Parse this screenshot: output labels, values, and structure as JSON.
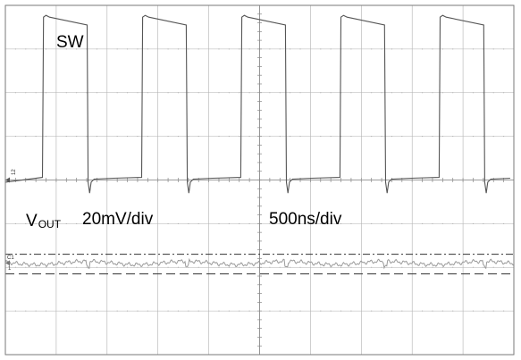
{
  "chart_data": {
    "type": "line",
    "grid": true,
    "labels": {
      "sw": "SW",
      "vout_main": "V",
      "vout_sub": "OUT",
      "vscale": "20mV/div",
      "tscale": "500ns/div",
      "ch2_marker": "12",
      "ch1_marker": "C1",
      "ch1_marker_2": "1"
    },
    "x_divisions": 10,
    "y_divisions": 8,
    "series": [
      {
        "trace": "sw",
        "period_div": 1.95,
        "first_rise_div": 0.75,
        "duty": 0.45,
        "high_level_div": 7.75,
        "low_level_div": 4.0,
        "color": "#555555"
      },
      {
        "trace": "vout",
        "period_div": 1.95,
        "mean_level_div": 2.1,
        "ripple_pp_div": 0.1,
        "color": "#9a9a9a"
      }
    ],
    "reference_lines": [
      {
        "style": "dash-dot",
        "level_div": 2.3
      },
      {
        "style": "dashed",
        "level_div": 1.85
      }
    ],
    "colors": {
      "grid": "#b0b0b0",
      "frame": "#7a7a7a",
      "background": "#ffffff"
    }
  }
}
